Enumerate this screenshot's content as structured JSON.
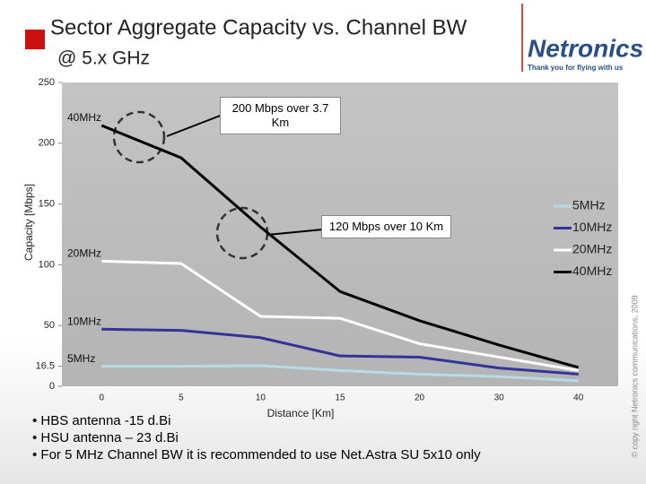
{
  "chart_data": {
    "type": "line",
    "title": "Sector Aggregate Capacity vs. Channel BW",
    "subtitle": "@ 5.x GHz",
    "x_label": "Distance [Km]",
    "y_label": "Capacity [Mbps]",
    "categories": [
      "0",
      "5",
      "10",
      "15",
      "20",
      "30",
      "40"
    ],
    "series": [
      {
        "name": "5MHz",
        "color": "#b7dbe6",
        "values": [
          16.5,
          16.5,
          17,
          13,
          10,
          8,
          4.5
        ]
      },
      {
        "name": "10MHz",
        "color": "#333399",
        "values": [
          47,
          46,
          40,
          25,
          24,
          15,
          10
        ]
      },
      {
        "name": "20MHz",
        "color": "#ffffff",
        "values": [
          103,
          101,
          57.5,
          56,
          35,
          24,
          13
        ]
      },
      {
        "name": "40MHz",
        "color": "#000000",
        "values": [
          214.6,
          188,
          131,
          78,
          54,
          34,
          15.5
        ]
      }
    ],
    "annotations": [
      "200 Mbps over 3.7 Km",
      "120 Mbps over 10 Km"
    ],
    "ylim": [
      0,
      250
    ],
    "yticks": [
      0,
      16.5,
      50,
      100,
      150,
      200,
      250
    ],
    "grid": false,
    "legend": "right"
  },
  "logo": {
    "name": "Netronics",
    "tagline": "Thank you for flying with us"
  },
  "bullets": [
    "• HBS antenna -15 d.Bi",
    "• HSU antenna – 23 d.Bi",
    "• For 5 MHz Channel BW it is recommended to use  Net.Astra SU 5x10 only"
  ],
  "copyright": "© copy right Netronics communications, 2009"
}
